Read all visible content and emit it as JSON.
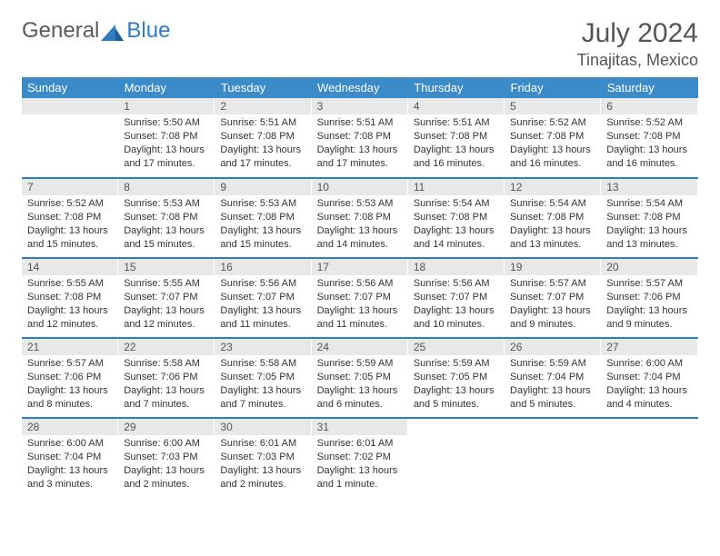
{
  "brand": {
    "part1": "General",
    "part2": "Blue"
  },
  "title": "July 2024",
  "location": "Tinajitas, Mexico",
  "colors": {
    "header_bg": "#3b8bc8",
    "header_text": "#ffffff",
    "row_divider": "#2d7dc0",
    "daynum_bg": "#e8e8e8",
    "body_text": "#333333",
    "title_text": "#555555",
    "logo_accent": "#2d7dc0"
  },
  "typography": {
    "month_fontsize": 30,
    "location_fontsize": 18,
    "weekday_fontsize": 13,
    "daynum_fontsize": 12,
    "cell_fontsize": 11
  },
  "weekdays": [
    "Sunday",
    "Monday",
    "Tuesday",
    "Wednesday",
    "Thursday",
    "Friday",
    "Saturday"
  ],
  "weeks": [
    [
      null,
      {
        "n": "1",
        "sr": "5:50 AM",
        "ss": "7:08 PM",
        "dl": "13 hours and 17 minutes."
      },
      {
        "n": "2",
        "sr": "5:51 AM",
        "ss": "7:08 PM",
        "dl": "13 hours and 17 minutes."
      },
      {
        "n": "3",
        "sr": "5:51 AM",
        "ss": "7:08 PM",
        "dl": "13 hours and 17 minutes."
      },
      {
        "n": "4",
        "sr": "5:51 AM",
        "ss": "7:08 PM",
        "dl": "13 hours and 16 minutes."
      },
      {
        "n": "5",
        "sr": "5:52 AM",
        "ss": "7:08 PM",
        "dl": "13 hours and 16 minutes."
      },
      {
        "n": "6",
        "sr": "5:52 AM",
        "ss": "7:08 PM",
        "dl": "13 hours and 16 minutes."
      }
    ],
    [
      {
        "n": "7",
        "sr": "5:52 AM",
        "ss": "7:08 PM",
        "dl": "13 hours and 15 minutes."
      },
      {
        "n": "8",
        "sr": "5:53 AM",
        "ss": "7:08 PM",
        "dl": "13 hours and 15 minutes."
      },
      {
        "n": "9",
        "sr": "5:53 AM",
        "ss": "7:08 PM",
        "dl": "13 hours and 15 minutes."
      },
      {
        "n": "10",
        "sr": "5:53 AM",
        "ss": "7:08 PM",
        "dl": "13 hours and 14 minutes."
      },
      {
        "n": "11",
        "sr": "5:54 AM",
        "ss": "7:08 PM",
        "dl": "13 hours and 14 minutes."
      },
      {
        "n": "12",
        "sr": "5:54 AM",
        "ss": "7:08 PM",
        "dl": "13 hours and 13 minutes."
      },
      {
        "n": "13",
        "sr": "5:54 AM",
        "ss": "7:08 PM",
        "dl": "13 hours and 13 minutes."
      }
    ],
    [
      {
        "n": "14",
        "sr": "5:55 AM",
        "ss": "7:08 PM",
        "dl": "13 hours and 12 minutes."
      },
      {
        "n": "15",
        "sr": "5:55 AM",
        "ss": "7:07 PM",
        "dl": "13 hours and 12 minutes."
      },
      {
        "n": "16",
        "sr": "5:56 AM",
        "ss": "7:07 PM",
        "dl": "13 hours and 11 minutes."
      },
      {
        "n": "17",
        "sr": "5:56 AM",
        "ss": "7:07 PM",
        "dl": "13 hours and 11 minutes."
      },
      {
        "n": "18",
        "sr": "5:56 AM",
        "ss": "7:07 PM",
        "dl": "13 hours and 10 minutes."
      },
      {
        "n": "19",
        "sr": "5:57 AM",
        "ss": "7:07 PM",
        "dl": "13 hours and 9 minutes."
      },
      {
        "n": "20",
        "sr": "5:57 AM",
        "ss": "7:06 PM",
        "dl": "13 hours and 9 minutes."
      }
    ],
    [
      {
        "n": "21",
        "sr": "5:57 AM",
        "ss": "7:06 PM",
        "dl": "13 hours and 8 minutes."
      },
      {
        "n": "22",
        "sr": "5:58 AM",
        "ss": "7:06 PM",
        "dl": "13 hours and 7 minutes."
      },
      {
        "n": "23",
        "sr": "5:58 AM",
        "ss": "7:05 PM",
        "dl": "13 hours and 7 minutes."
      },
      {
        "n": "24",
        "sr": "5:59 AM",
        "ss": "7:05 PM",
        "dl": "13 hours and 6 minutes."
      },
      {
        "n": "25",
        "sr": "5:59 AM",
        "ss": "7:05 PM",
        "dl": "13 hours and 5 minutes."
      },
      {
        "n": "26",
        "sr": "5:59 AM",
        "ss": "7:04 PM",
        "dl": "13 hours and 5 minutes."
      },
      {
        "n": "27",
        "sr": "6:00 AM",
        "ss": "7:04 PM",
        "dl": "13 hours and 4 minutes."
      }
    ],
    [
      {
        "n": "28",
        "sr": "6:00 AM",
        "ss": "7:04 PM",
        "dl": "13 hours and 3 minutes."
      },
      {
        "n": "29",
        "sr": "6:00 AM",
        "ss": "7:03 PM",
        "dl": "13 hours and 2 minutes."
      },
      {
        "n": "30",
        "sr": "6:01 AM",
        "ss": "7:03 PM",
        "dl": "13 hours and 2 minutes."
      },
      {
        "n": "31",
        "sr": "6:01 AM",
        "ss": "7:02 PM",
        "dl": "13 hours and 1 minute."
      },
      null,
      null,
      null
    ]
  ],
  "labels": {
    "sunrise": "Sunrise:",
    "sunset": "Sunset:",
    "daylight": "Daylight:"
  }
}
